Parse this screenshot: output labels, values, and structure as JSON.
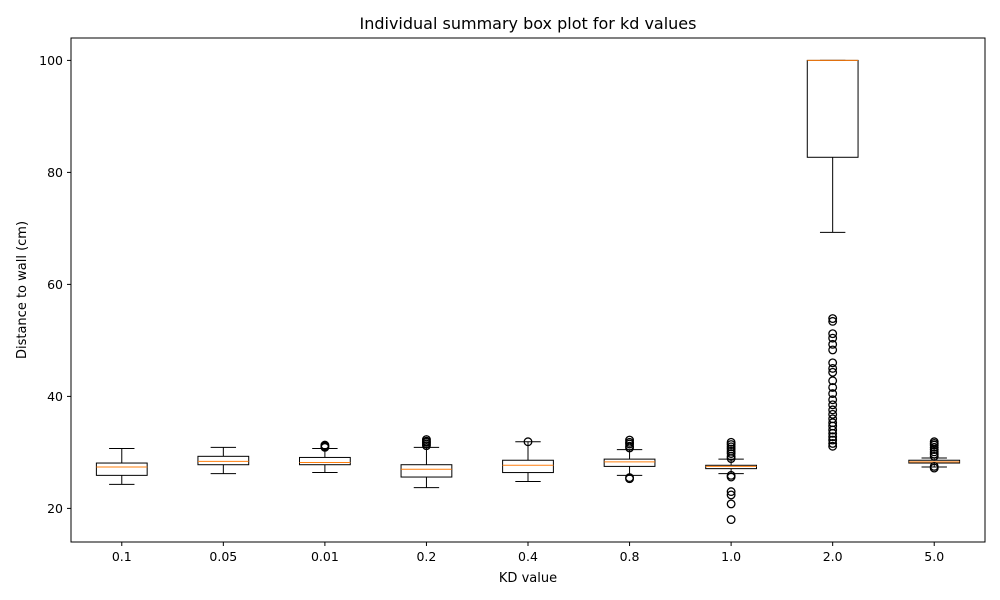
{
  "chart_data": {
    "type": "box",
    "title": "Individual summary box plot for kd values",
    "xlabel": "KD value",
    "ylabel": "Distance to wall (cm)",
    "ylim": [
      14,
      104
    ],
    "yticks": [
      20,
      40,
      60,
      80,
      100
    ],
    "grid": false,
    "colors": {
      "box": "#000000",
      "median": "#ff7f0e",
      "flier": "#000000"
    },
    "categories": [
      "0.1",
      "0.05",
      "0.01",
      "0.2",
      "0.4",
      "0.8",
      "1.0",
      "2.0",
      "5.0"
    ],
    "boxes": [
      {
        "whisker_low": 24.3,
        "q1": 25.9,
        "median": 27.4,
        "q3": 28.1,
        "whisker_high": 30.7,
        "fliers": []
      },
      {
        "whisker_low": 26.2,
        "q1": 27.8,
        "median": 28.4,
        "q3": 29.3,
        "whisker_high": 30.9,
        "fliers": []
      },
      {
        "whisker_low": 26.4,
        "q1": 27.8,
        "median": 28.2,
        "q3": 29.1,
        "whisker_high": 30.7,
        "fliers": [
          30.9,
          31.1,
          31.3
        ]
      },
      {
        "whisker_low": 23.7,
        "q1": 25.6,
        "median": 27.0,
        "q3": 27.8,
        "whisker_high": 30.9,
        "fliers": [
          31.2,
          31.5,
          31.8,
          32.0,
          32.3
        ]
      },
      {
        "whisker_low": 24.8,
        "q1": 26.4,
        "median": 27.7,
        "q3": 28.6,
        "whisker_high": 31.9,
        "fliers": [
          31.9
        ]
      },
      {
        "whisker_low": 25.9,
        "q1": 27.5,
        "median": 28.3,
        "q3": 28.8,
        "whisker_high": 30.5,
        "fliers": [
          25.3,
          25.5,
          30.8,
          31.1,
          31.5,
          31.8,
          32.2
        ]
      },
      {
        "whisker_low": 26.2,
        "q1": 27.1,
        "median": 27.5,
        "q3": 27.7,
        "whisker_high": 28.8,
        "fliers": [
          18.0,
          20.8,
          22.4,
          23.0,
          25.6,
          25.9,
          28.9,
          29.3,
          29.8,
          30.2,
          30.6,
          31.0,
          31.4,
          31.8
        ]
      },
      {
        "whisker_low": 69.3,
        "q1": 82.7,
        "median": 100.0,
        "q3": 100.0,
        "whisker_high": 100.0,
        "fliers": [
          31.1,
          31.6,
          32.2,
          32.8,
          33.4,
          34.0,
          34.7,
          35.3,
          36.0,
          36.8,
          37.6,
          38.5,
          39.4,
          40.5,
          41.6,
          42.8,
          44.3,
          45.0,
          46.0,
          48.3,
          49.3,
          50.4,
          51.2,
          53.4,
          53.9
        ]
      },
      {
        "whisker_low": 27.4,
        "q1": 28.1,
        "median": 28.3,
        "q3": 28.6,
        "whisker_high": 29.0,
        "fliers": [
          27.2,
          27.5,
          29.3,
          29.7,
          30.1,
          30.5,
          30.9,
          31.3,
          31.6,
          31.9
        ]
      }
    ]
  }
}
